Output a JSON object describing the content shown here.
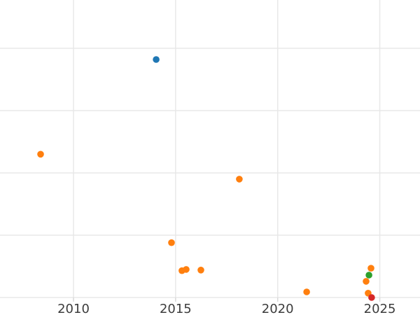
{
  "figure": {
    "background": "#ffffff",
    "grid_color": "#e8e8e8",
    "tick_mark_color": "#d9d9d9",
    "tick_label_color": "#3c3c3c"
  },
  "chart_data": {
    "type": "scatter",
    "title": "",
    "xlabel": "",
    "ylabel": "",
    "grid": true,
    "legend": false,
    "x_tick_labels": [
      "2010",
      "2015",
      "2020",
      "2025"
    ],
    "x_tick_values": [
      2010,
      2015,
      2020,
      2025
    ],
    "y_tick_labels": [],
    "y_axis_note": "y-axis tick labels are cropped out of the visible image; y values are expressed in gridline units where 0 = lowest visible horizontal gridline and each gridline step = 1 (gridlines visible at units 0,1,2,3,4)",
    "xlim": [
      2006.4,
      2027.0
    ],
    "ylim_units": [
      -0.28,
      4.78
    ],
    "marker": "circle",
    "series": [
      {
        "name": "blue",
        "color": "#1f77b4",
        "points": [
          [
            2014.05,
            3.82
          ]
        ]
      },
      {
        "name": "orange",
        "color": "#ff7f0e",
        "points": [
          [
            2008.39,
            2.3
          ],
          [
            2014.8,
            0.88
          ],
          [
            2015.31,
            0.43
          ],
          [
            2015.52,
            0.45
          ],
          [
            2016.24,
            0.44
          ],
          [
            2018.12,
            1.9
          ],
          [
            2021.42,
            0.09
          ],
          [
            2024.33,
            0.26
          ],
          [
            2024.43,
            0.07
          ],
          [
            2024.57,
            0.47
          ]
        ]
      },
      {
        "name": "green",
        "color": "#2ca02c",
        "points": [
          [
            2024.47,
            0.36
          ]
        ]
      },
      {
        "name": "red",
        "color": "#d62728",
        "points": [
          [
            2024.6,
            0.0
          ]
        ]
      }
    ]
  }
}
